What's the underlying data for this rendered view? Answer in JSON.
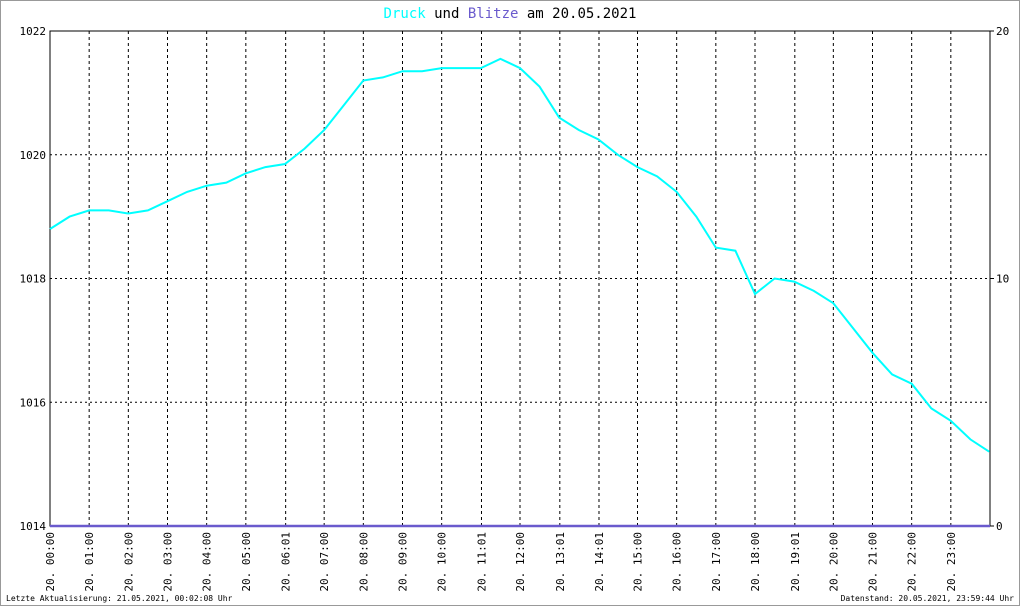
{
  "chart_data": {
    "type": "line",
    "title_join": "und",
    "title_rest": "am 20.05.2021",
    "xlim": [
      0,
      24
    ],
    "xticks": [
      {
        "value": 0,
        "label": "20. 00:00"
      },
      {
        "value": 1,
        "label": "20. 01:00"
      },
      {
        "value": 2,
        "label": "20. 02:00"
      },
      {
        "value": 3,
        "label": "20. 03:00"
      },
      {
        "value": 4,
        "label": "20. 04:00"
      },
      {
        "value": 5,
        "label": "20. 05:00"
      },
      {
        "value": 6.0167,
        "label": "20. 06:01"
      },
      {
        "value": 7,
        "label": "20. 07:00"
      },
      {
        "value": 8,
        "label": "20. 08:00"
      },
      {
        "value": 9,
        "label": "20. 09:00"
      },
      {
        "value": 10,
        "label": "20. 10:00"
      },
      {
        "value": 11.0167,
        "label": "20. 11:01"
      },
      {
        "value": 12,
        "label": "20. 12:00"
      },
      {
        "value": 13.0167,
        "label": "20. 13:01"
      },
      {
        "value": 14.0167,
        "label": "20. 14:01"
      },
      {
        "value": 15,
        "label": "20. 15:00"
      },
      {
        "value": 16,
        "label": "20. 16:00"
      },
      {
        "value": 17,
        "label": "20. 17:00"
      },
      {
        "value": 18,
        "label": "20. 18:00"
      },
      {
        "value": 19.0167,
        "label": "20. 19:01"
      },
      {
        "value": 20,
        "label": "20. 20:00"
      },
      {
        "value": 21,
        "label": "20. 21:00"
      },
      {
        "value": 22,
        "label": "20. 22:00"
      },
      {
        "value": 23,
        "label": "20. 23:00"
      }
    ],
    "ylim": [
      1014,
      1022
    ],
    "yticks": [
      1014,
      1016,
      1018,
      1020,
      1022
    ],
    "y2lim": [
      0,
      20
    ],
    "y2ticks": [
      0,
      10,
      20
    ],
    "grid": true,
    "series": [
      {
        "name": "Druck",
        "color": "#00ffff",
        "x": [
          0,
          0.5,
          1,
          1.5,
          2,
          2.5,
          3,
          3.5,
          4,
          4.5,
          5,
          5.5,
          6,
          6.5,
          7,
          7.5,
          8,
          8.5,
          9,
          9.5,
          10,
          10.5,
          11,
          11.5,
          12,
          12.5,
          13,
          13.5,
          14,
          14.5,
          15,
          15.5,
          16,
          16.5,
          17,
          17.5,
          18,
          18.5,
          19,
          19.5,
          20,
          20.5,
          21,
          21.5,
          22,
          22.5,
          23,
          23.5,
          23.98
        ],
        "values": [
          1018.8,
          1019.0,
          1019.1,
          1019.1,
          1019.05,
          1019.1,
          1019.25,
          1019.4,
          1019.5,
          1019.55,
          1019.7,
          1019.8,
          1019.85,
          1020.1,
          1020.4,
          1020.8,
          1021.2,
          1021.25,
          1021.35,
          1021.35,
          1021.4,
          1021.4,
          1021.4,
          1021.55,
          1021.4,
          1021.1,
          1020.6,
          1020.4,
          1020.25,
          1020.0,
          1019.8,
          1019.65,
          1019.4,
          1019.0,
          1018.5,
          1018.45,
          1017.75,
          1018.0,
          1017.95,
          1017.8,
          1017.6,
          1017.2,
          1016.8,
          1016.45,
          1016.3,
          1015.9,
          1015.7,
          1015.4,
          1015.2
        ]
      },
      {
        "name": "Blitze",
        "color": "#6a5acd",
        "axis": "y2",
        "x": [
          0,
          24
        ],
        "values": [
          0,
          0
        ]
      }
    ],
    "footer_left": "Letzte Aktualisierung: 21.05.2021, 00:02:08 Uhr",
    "footer_right": "Datenstand: 20.05.2021, 23:59:44 Uhr"
  }
}
